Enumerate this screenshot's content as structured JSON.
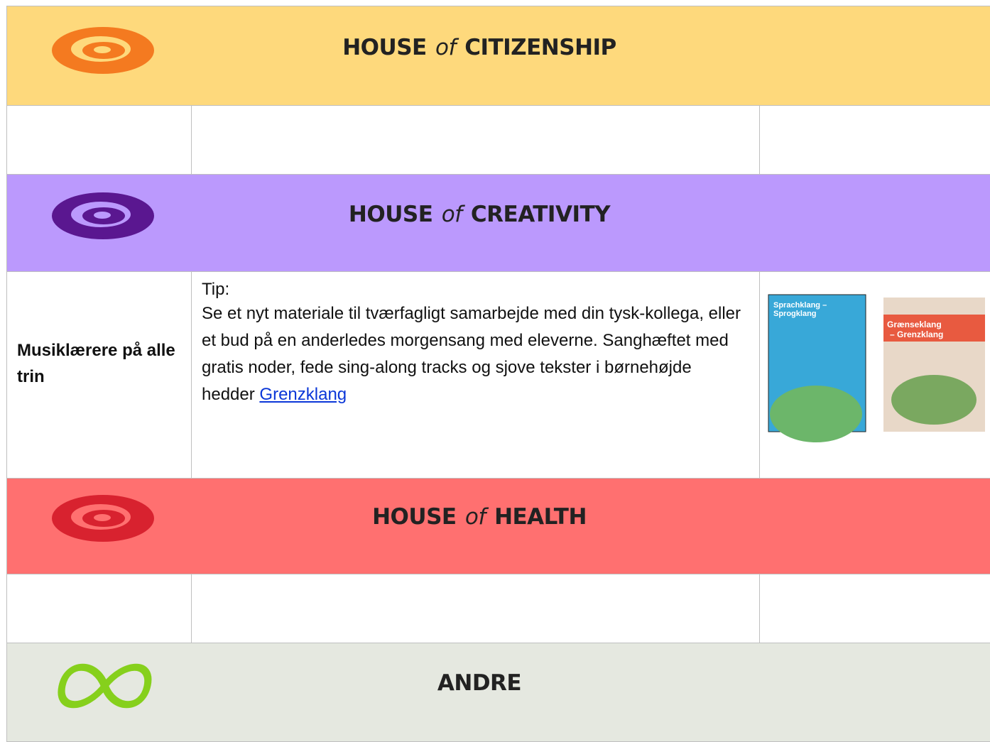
{
  "sections": [
    {
      "prefix": "HOUSE",
      "of": "of",
      "name": "CITIZENSHIP"
    },
    {
      "prefix": "HOUSE",
      "of": "of",
      "name": "CREATIVITY"
    },
    {
      "prefix": "HOUSE",
      "of": "of",
      "name": "HEALTH"
    },
    {
      "name": "ANDRE"
    }
  ],
  "entry": {
    "audience": "Musiklærere på alle trin",
    "tip_label": "Tip:",
    "text": "Se et nyt materiale til tværfagligt samarbejde med din tysk-kollega, eller et bud på en anderledes morgensang med eleverne. Sanghæftet med gratis noder, fede sing-along tracks og sjove tekster i børnehøjde hedder",
    "link": "Grenzklang",
    "covers": [
      {
        "line1": "Sprachklang –",
        "line2": "Sprogklang"
      },
      {
        "line1": "Grænseklang",
        "line2": "– Grenzklang"
      }
    ]
  }
}
